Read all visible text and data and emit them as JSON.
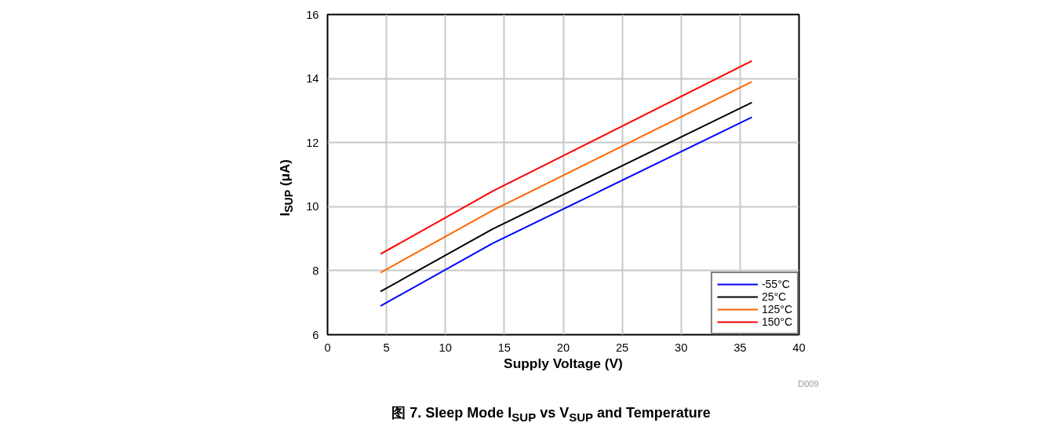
{
  "chart_data": {
    "type": "line",
    "title": "图 7. Sleep Mode I$_{SUP}$ vs V$_{SUP}$ and Temperature",
    "xlabel": "Supply Voltage (V)",
    "ylabel": "I$_{SUP}$ (μA)",
    "x": [
      4.5,
      14,
      36
    ],
    "series": [
      {
        "name": "-55°C",
        "color": "#0000ff",
        "values": [
          6.9,
          8.85,
          12.79
        ]
      },
      {
        "name": "25°C",
        "color": "#000000",
        "values": [
          7.35,
          9.3,
          13.25
        ]
      },
      {
        "name": "125°C",
        "color": "#ff6600",
        "values": [
          7.94,
          9.88,
          13.9
        ]
      },
      {
        "name": "150°C",
        "color": "#ff0000",
        "values": [
          8.52,
          10.48,
          14.55
        ]
      }
    ],
    "xlim": [
      0,
      40
    ],
    "xticks": [
      0,
      5,
      10,
      15,
      20,
      25,
      30,
      35,
      40
    ],
    "ylim": [
      6,
      16
    ],
    "yticks": [
      6,
      8,
      10,
      12,
      14,
      16
    ],
    "grid": true,
    "legend": "bottom right",
    "marker": "none",
    "line_style": "solid",
    "annotations": [
      "D009"
    ]
  }
}
